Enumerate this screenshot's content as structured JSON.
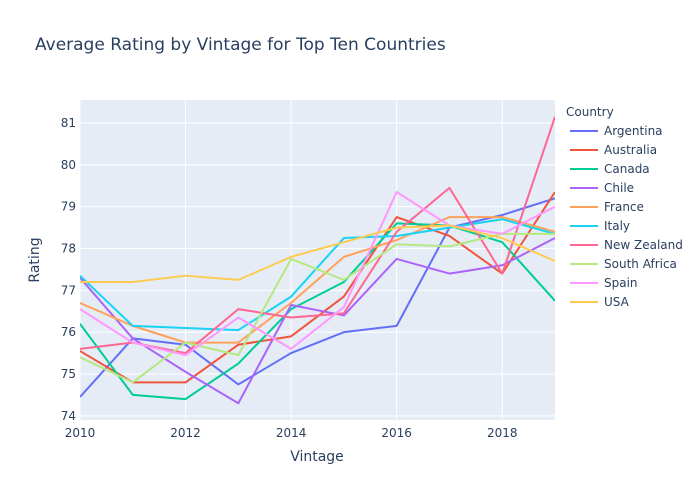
{
  "chart_data": {
    "type": "line",
    "title": "Average Rating by Vintage for Top Ten Countries",
    "xlabel": "Vintage",
    "ylabel": "Rating",
    "xlim": [
      2010,
      2019
    ],
    "ylim": [
      73.9,
      81.55
    ],
    "x_ticks": [
      2010,
      2012,
      2014,
      2016,
      2018
    ],
    "y_ticks": [
      74,
      75,
      76,
      77,
      78,
      79,
      80,
      81
    ],
    "grid": true,
    "background": "#e5ecf6",
    "legend_title": "Country",
    "legend_position": "right",
    "x": [
      2010,
      2011,
      2012,
      2013,
      2014,
      2015,
      2016,
      2017,
      2018,
      2019
    ],
    "series": [
      {
        "name": "Argentina",
        "color": "#636efa",
        "values": [
          74.45,
          75.85,
          75.7,
          74.75,
          75.5,
          76.0,
          76.15,
          78.5,
          78.8,
          79.2
        ]
      },
      {
        "name": "Australia",
        "color": "#ef553b",
        "values": [
          75.55,
          74.8,
          74.8,
          75.7,
          75.9,
          76.85,
          78.75,
          78.3,
          77.4,
          79.35
        ]
      },
      {
        "name": "Canada",
        "color": "#00cc96",
        "values": [
          76.2,
          74.5,
          74.4,
          75.25,
          76.55,
          77.2,
          78.6,
          78.55,
          78.15,
          76.75
        ]
      },
      {
        "name": "Chile",
        "color": "#ab63fa",
        "values": [
          77.3,
          75.85,
          75.05,
          74.3,
          76.65,
          76.4,
          77.75,
          77.4,
          77.6,
          78.25
        ]
      },
      {
        "name": "France",
        "color": "#ffa15a",
        "values": [
          76.7,
          76.15,
          75.75,
          75.75,
          76.7,
          77.8,
          78.2,
          78.75,
          78.75,
          78.4
        ]
      },
      {
        "name": "Italy",
        "color": "#19d3f3",
        "values": [
          77.35,
          76.15,
          76.1,
          76.05,
          76.85,
          78.25,
          78.3,
          78.5,
          78.7,
          78.35
        ]
      },
      {
        "name": "New Zealand",
        "color": "#ff6692",
        "values": [
          75.6,
          75.75,
          75.5,
          76.55,
          76.35,
          76.45,
          78.4,
          79.45,
          77.4,
          81.15
        ]
      },
      {
        "name": "South Africa",
        "color": "#b6e880",
        "values": [
          75.4,
          74.8,
          75.75,
          75.45,
          77.75,
          77.25,
          78.1,
          78.05,
          78.35,
          78.35
        ]
      },
      {
        "name": "Spain",
        "color": "#ff97ff",
        "values": [
          76.55,
          75.75,
          75.45,
          76.35,
          75.6,
          76.6,
          79.35,
          78.55,
          78.35,
          79.0
        ]
      },
      {
        "name": "USA",
        "color": "#fecb52",
        "values": [
          77.2,
          77.2,
          77.35,
          77.25,
          77.8,
          78.15,
          78.5,
          78.55,
          78.25,
          77.7
        ]
      }
    ]
  }
}
